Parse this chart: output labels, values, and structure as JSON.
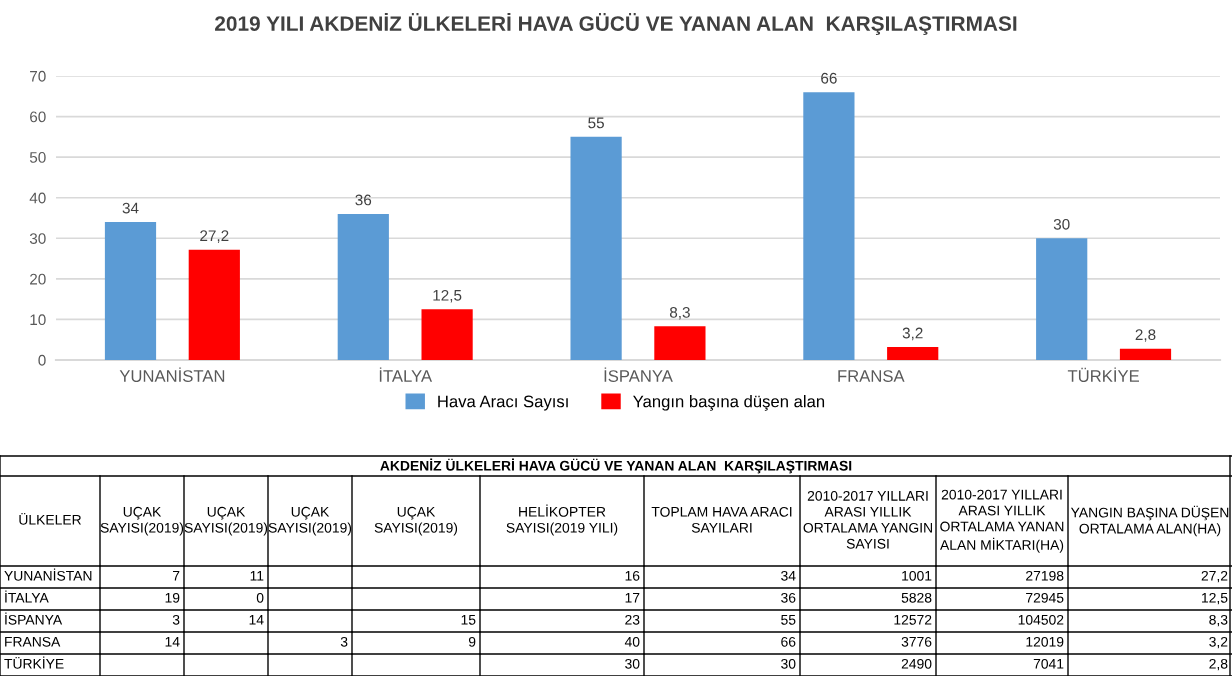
{
  "chart_data": {
    "type": "bar",
    "title": "2019 YILI AKDENİZ ÜLKELERİ HAVA GÜCÜ VE YANAN ALAN  KARŞILAŞTIRMASI",
    "categories": [
      "YUNANİSTAN",
      "İTALYA",
      "İSPANYA",
      "FRANSA",
      "TÜRKİYE"
    ],
    "series": [
      {
        "name": "Hava Aracı Sayısı",
        "color": "#5b9bd5",
        "values": [
          34,
          36,
          55,
          66,
          30
        ],
        "value_labels": [
          "34",
          "36",
          "55",
          "66",
          "30"
        ]
      },
      {
        "name": "Yangın başına düşen alan",
        "color": "#ff0000",
        "values": [
          27.2,
          12.5,
          8.3,
          3.2,
          2.8
        ],
        "value_labels": [
          "27,2",
          "12,5",
          "8,3",
          "3,2",
          "2,8"
        ]
      }
    ],
    "ylim": [
      0,
      70
    ],
    "yticks": [
      0,
      10,
      20,
      30,
      40,
      50,
      60,
      70
    ],
    "grid": "y",
    "legend": "bottom",
    "annotations": [
      "AKDENİZ ÜLKELERİ HAVA GÜCÜ VE YANAN ALAN  KARŞILAŞTIRMASI",
      "ÜLKELER",
      "UÇAK SAYISI(2019)",
      "UÇAK SAYISI(2019)",
      "UÇAK SAYISI(2019)",
      "UÇAK SAYISI(2019)",
      "HELİKOPTER SAYISI(2019 YILI)",
      "TOPLAM HAVA ARACI SAYILARI",
      "2010-2017 YILLARI ARASI YILLIK ORTALAMA YANGIN SAYISI",
      "2010-2017 YILLARI ARASI YILLIK ORTALAMA YANAN ALAN MİKTARI(HA)",
      "YANGIN BAŞINA DÜŞEN ORTALAMA ALAN(HA)",
      "YUNANİSTAN",
      "7",
      "11",
      null,
      null,
      "16",
      "34",
      "1001",
      "27198",
      "27,2",
      "İTALYA",
      "19",
      "0",
      null,
      null,
      "17",
      "36",
      "5828",
      "72945",
      "12,5",
      "İSPANYA",
      "3",
      "14",
      null,
      "15",
      "23",
      "55",
      "12572",
      "104502",
      "8,3",
      "FRANSA",
      "14",
      null,
      "3",
      "9",
      "40",
      "66",
      "3776",
      "12019",
      "3,2",
      "TÜRKİYE",
      null,
      null,
      null,
      null,
      "30",
      "30",
      "2490",
      "7041",
      "2,8"
    ]
  }
}
